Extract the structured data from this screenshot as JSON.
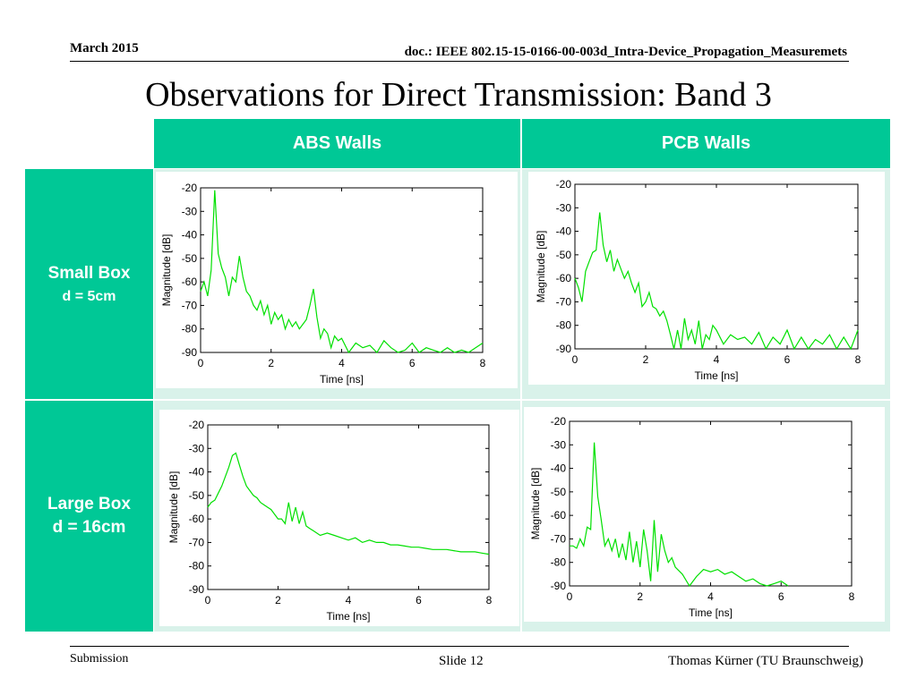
{
  "header": {
    "date": "March 2015",
    "doc": "doc.: IEEE 802.15-15-0166-00-003d_Intra-Device_Propagation_Measuremets"
  },
  "title": "Observations for Direct Transmission: Band 3",
  "table": {
    "col_headers": [
      "ABS Walls",
      "PCB Walls"
    ],
    "rows": [
      {
        "line1": "Small Box",
        "line2": "d = 5cm"
      },
      {
        "line1": "Large Box",
        "line2": "d = 16cm"
      }
    ]
  },
  "footer": {
    "left": "Submission",
    "mid": "Slide 12",
    "right": "Thomas Kürner (TU Braunschweig)"
  },
  "colors": {
    "accent": "#00c896",
    "cell_bg": "#d9f2ea",
    "trace": "#00e000"
  },
  "chart_data": [
    {
      "type": "line",
      "position": "small-box-abs",
      "xlabel": "Time [ns]",
      "ylabel": "Magnitude [dB]",
      "xlim": [
        0,
        8
      ],
      "ylim": [
        -90,
        -20
      ],
      "xticks": [
        0,
        2,
        4,
        6,
        8
      ],
      "yticks": [
        -20,
        -30,
        -40,
        -50,
        -60,
        -70,
        -80,
        -90
      ],
      "x": [
        0,
        0.1,
        0.2,
        0.3,
        0.4,
        0.5,
        0.6,
        0.7,
        0.8,
        0.9,
        1.0,
        1.1,
        1.2,
        1.3,
        1.4,
        1.5,
        1.6,
        1.7,
        1.8,
        1.9,
        2.0,
        2.1,
        2.2,
        2.3,
        2.4,
        2.5,
        2.6,
        2.7,
        2.8,
        2.9,
        3.0,
        3.1,
        3.2,
        3.3,
        3.4,
        3.5,
        3.6,
        3.7,
        3.8,
        3.9,
        4.0,
        4.2,
        4.4,
        4.6,
        4.8,
        5.0,
        5.2,
        5.4,
        5.6,
        5.8,
        6.0,
        6.2,
        6.4,
        6.6,
        6.8,
        7.0,
        7.2,
        7.4,
        7.6,
        7.8,
        8.0
      ],
      "values": [
        -64,
        -60,
        -66,
        -55,
        -21,
        -48,
        -54,
        -58,
        -66,
        -58,
        -60,
        -49,
        -58,
        -64,
        -66,
        -70,
        -72,
        -68,
        -74,
        -70,
        -78,
        -73,
        -76,
        -74,
        -80,
        -76,
        -79,
        -77,
        -80,
        -78,
        -76,
        -70,
        -63,
        -75,
        -84,
        -80,
        -82,
        -88,
        -83,
        -85,
        -84,
        -90,
        -86,
        -88,
        -87,
        -90,
        -85,
        -88,
        -90,
        -89,
        -86,
        -90,
        -88,
        -89,
        -90,
        -88,
        -90,
        -89,
        -90,
        -88,
        -86
      ]
    },
    {
      "type": "line",
      "position": "small-box-pcb",
      "xlabel": "Time [ns]",
      "ylabel": "Magnitude [dB]",
      "xlim": [
        0,
        8
      ],
      "ylim": [
        -90,
        -20
      ],
      "xticks": [
        0,
        2,
        4,
        6,
        8
      ],
      "yticks": [
        -20,
        -30,
        -40,
        -50,
        -60,
        -70,
        -80,
        -90
      ],
      "x": [
        0,
        0.1,
        0.2,
        0.3,
        0.4,
        0.5,
        0.6,
        0.7,
        0.8,
        0.9,
        1.0,
        1.1,
        1.2,
        1.3,
        1.4,
        1.5,
        1.6,
        1.7,
        1.8,
        1.9,
        2.0,
        2.1,
        2.2,
        2.3,
        2.4,
        2.5,
        2.6,
        2.7,
        2.8,
        2.9,
        3.0,
        3.1,
        3.2,
        3.3,
        3.4,
        3.5,
        3.6,
        3.7,
        3.8,
        3.9,
        4.0,
        4.2,
        4.4,
        4.6,
        4.8,
        5.0,
        5.2,
        5.4,
        5.6,
        5.8,
        6.0,
        6.2,
        6.4,
        6.6,
        6.8,
        7.0,
        7.2,
        7.4,
        7.6,
        7.8,
        8.0
      ],
      "values": [
        -60,
        -64,
        -70,
        -57,
        -53,
        -49,
        -48,
        -32,
        -46,
        -53,
        -48,
        -57,
        -52,
        -56,
        -60,
        -57,
        -62,
        -66,
        -62,
        -72,
        -70,
        -66,
        -72,
        -73,
        -76,
        -74,
        -78,
        -84,
        -90,
        -82,
        -90,
        -77,
        -86,
        -82,
        -88,
        -78,
        -90,
        -84,
        -86,
        -80,
        -82,
        -88,
        -84,
        -86,
        -85,
        -88,
        -83,
        -90,
        -85,
        -88,
        -82,
        -90,
        -85,
        -90,
        -86,
        -88,
        -84,
        -90,
        -85,
        -90,
        -82
      ]
    },
    {
      "type": "line",
      "position": "large-box-abs",
      "xlabel": "Time [ns]",
      "ylabel": "Magnitude [dB]",
      "xlim": [
        0,
        8
      ],
      "ylim": [
        -90,
        -20
      ],
      "xticks": [
        0,
        2,
        4,
        6,
        8
      ],
      "yticks": [
        -20,
        -30,
        -40,
        -50,
        -60,
        -70,
        -80,
        -90
      ],
      "x": [
        0,
        0.1,
        0.2,
        0.3,
        0.4,
        0.5,
        0.6,
        0.7,
        0.8,
        0.9,
        1.0,
        1.1,
        1.2,
        1.3,
        1.4,
        1.5,
        1.6,
        1.7,
        1.8,
        1.9,
        2.0,
        2.1,
        2.2,
        2.3,
        2.4,
        2.5,
        2.6,
        2.7,
        2.8,
        2.9,
        3.0,
        3.2,
        3.4,
        3.6,
        3.8,
        4.0,
        4.2,
        4.4,
        4.6,
        4.8,
        5.0,
        5.2,
        5.4,
        5.6,
        5.8,
        6.0,
        6.2,
        6.4,
        6.6,
        6.8,
        7.0,
        7.2,
        7.4,
        7.6,
        7.8,
        8.0
      ],
      "values": [
        -55,
        -53,
        -52,
        -49,
        -46,
        -42,
        -38,
        -33,
        -32,
        -37,
        -42,
        -46,
        -48,
        -50,
        -51,
        -53,
        -54,
        -55,
        -56,
        -58,
        -60,
        -60,
        -62,
        -53,
        -61,
        -55,
        -62,
        -57,
        -63,
        -64,
        -65,
        -67,
        -66,
        -67,
        -68,
        -69,
        -68,
        -70,
        -69,
        -70,
        -70,
        -71,
        -71,
        -71.5,
        -72,
        -72,
        -72.5,
        -73,
        -73,
        -73,
        -73.5,
        -74,
        -74,
        -74,
        -74.5,
        -75
      ]
    },
    {
      "type": "line",
      "position": "large-box-pcb",
      "xlabel": "Time [ns]",
      "ylabel": "Magnitude [dB]",
      "xlim": [
        0,
        8
      ],
      "ylim": [
        -90,
        -20
      ],
      "xticks": [
        0,
        2,
        4,
        6,
        8
      ],
      "yticks": [
        -20,
        -30,
        -40,
        -50,
        -60,
        -70,
        -80,
        -90
      ],
      "x": [
        0,
        0.1,
        0.2,
        0.3,
        0.4,
        0.5,
        0.6,
        0.7,
        0.8,
        0.9,
        1.0,
        1.1,
        1.2,
        1.3,
        1.4,
        1.5,
        1.6,
        1.7,
        1.8,
        1.9,
        2.0,
        2.1,
        2.2,
        2.3,
        2.4,
        2.5,
        2.6,
        2.7,
        2.8,
        2.9,
        3.0,
        3.2,
        3.4,
        3.6,
        3.8,
        4.0,
        4.2,
        4.4,
        4.6,
        4.8,
        5.0,
        5.2,
        5.4,
        5.6,
        5.8,
        6.0,
        6.2
      ],
      "values": [
        -73,
        -73,
        -74,
        -70,
        -73,
        -65,
        -66,
        -29,
        -52,
        -62,
        -73,
        -70,
        -75,
        -70,
        -78,
        -72,
        -79,
        -67,
        -80,
        -71,
        -82,
        -66,
        -75,
        -88,
        -62,
        -84,
        -68,
        -75,
        -80,
        -78,
        -82,
        -85,
        -90,
        -86,
        -83,
        -84,
        -83,
        -85,
        -84,
        -86,
        -88,
        -87,
        -89,
        -90,
        -89,
        -88,
        -90
      ]
    }
  ]
}
